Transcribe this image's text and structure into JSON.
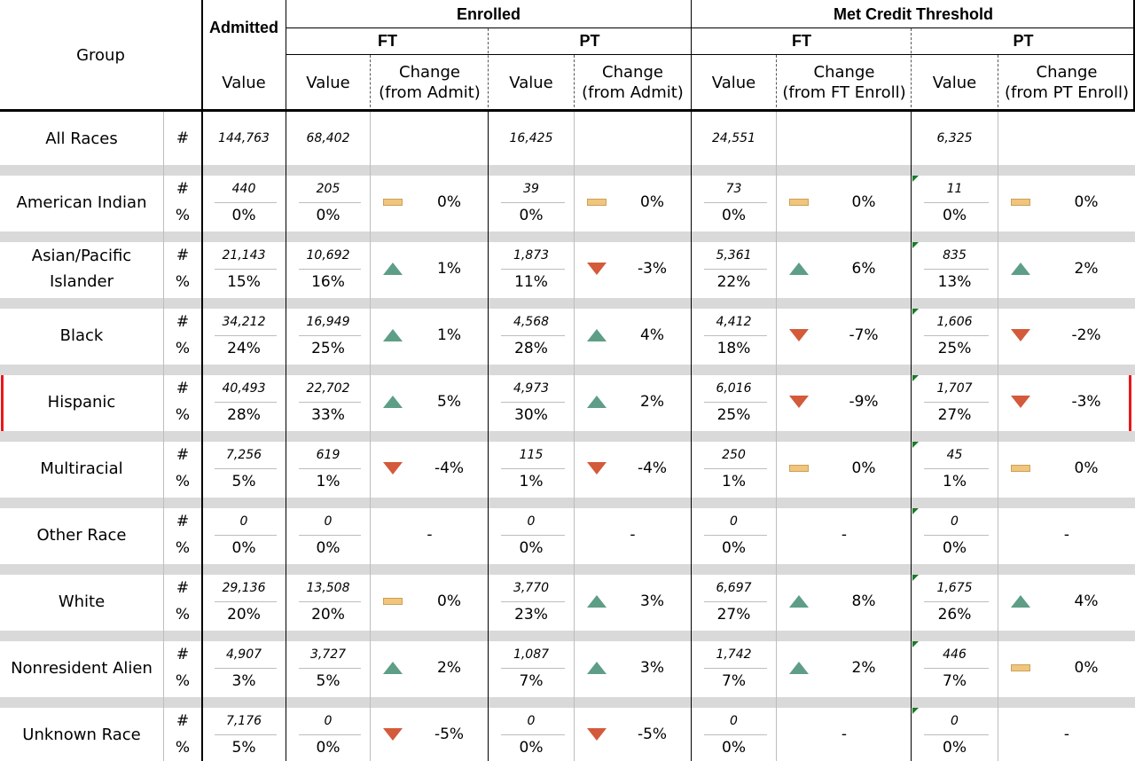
{
  "header": {
    "group": "Group",
    "admitted": "Admitted",
    "enrolled": "Enrolled",
    "met_credit_threshold": "Met Credit Threshold",
    "ft": "FT",
    "pt": "PT",
    "value": "Value",
    "change": "Change",
    "from_admit": "(from Admit)",
    "from_ft_enroll": "(from FT Enroll)",
    "from_pt_enroll": "(from PT Enroll)"
  },
  "symbols": {
    "count": "#",
    "percent": "%"
  },
  "colors": {
    "up": "#5e9e86",
    "down": "#d35a3a",
    "flat": "#f2c57c",
    "band": "#d9d9d9",
    "highlight": "#e8171b",
    "flag": "#1a7a2a"
  },
  "rows": [
    {
      "group": "All Races",
      "n": [
        "144,763",
        "68,402",
        "16,425",
        "24,551",
        "6,325"
      ]
    },
    {
      "group": "American Indian",
      "n": [
        "440",
        "205",
        "39",
        "73",
        "11"
      ],
      "p": [
        "0%",
        "0%",
        "0%",
        "0%",
        "0%"
      ],
      "c": [
        {
          "icon": "flat-bar-icon",
          "t": "0%"
        },
        {
          "icon": "flat-bar-icon",
          "t": "0%"
        },
        {
          "icon": "flat-bar-icon",
          "t": "0%"
        },
        {
          "icon": "flat-bar-icon",
          "t": "0%"
        }
      ]
    },
    {
      "group": "Asian/Pacific Islander",
      "n": [
        "21,143",
        "10,692",
        "1,873",
        "5,361",
        "835"
      ],
      "p": [
        "15%",
        "16%",
        "11%",
        "22%",
        "13%"
      ],
      "c": [
        {
          "icon": "up-triangle-icon",
          "t": "1%"
        },
        {
          "icon": "down-triangle-icon",
          "t": "-3%"
        },
        {
          "icon": "up-triangle-icon",
          "t": "6%"
        },
        {
          "icon": "up-triangle-icon",
          "t": "2%"
        }
      ]
    },
    {
      "group": "Black",
      "n": [
        "34,212",
        "16,949",
        "4,568",
        "4,412",
        "1,606"
      ],
      "p": [
        "24%",
        "25%",
        "28%",
        "18%",
        "25%"
      ],
      "c": [
        {
          "icon": "up-triangle-icon",
          "t": "1%"
        },
        {
          "icon": "up-triangle-icon",
          "t": "4%"
        },
        {
          "icon": "down-triangle-icon",
          "t": "-7%"
        },
        {
          "icon": "down-triangle-icon",
          "t": "-2%"
        }
      ]
    },
    {
      "group": "Hispanic",
      "n": [
        "40,493",
        "22,702",
        "4,973",
        "6,016",
        "1,707"
      ],
      "p": [
        "28%",
        "33%",
        "30%",
        "25%",
        "27%"
      ],
      "c": [
        {
          "icon": "up-triangle-icon",
          "t": "5%"
        },
        {
          "icon": "up-triangle-icon",
          "t": "2%"
        },
        {
          "icon": "down-triangle-icon",
          "t": "-9%"
        },
        {
          "icon": "down-triangle-icon",
          "t": "-3%"
        }
      ]
    },
    {
      "group": "Multiracial",
      "n": [
        "7,256",
        "619",
        "115",
        "250",
        "45"
      ],
      "p": [
        "5%",
        "1%",
        "1%",
        "1%",
        "1%"
      ],
      "c": [
        {
          "icon": "down-triangle-icon",
          "t": "-4%"
        },
        {
          "icon": "down-triangle-icon",
          "t": "-4%"
        },
        {
          "icon": "flat-bar-icon",
          "t": "0%"
        },
        {
          "icon": "flat-bar-icon",
          "t": "0%"
        }
      ]
    },
    {
      "group": "Other Race",
      "n": [
        "0",
        "0",
        "0",
        "0",
        "0"
      ],
      "p": [
        "0%",
        "0%",
        "0%",
        "0%",
        "0%"
      ],
      "c": [
        {
          "icon": "",
          "t": "-"
        },
        {
          "icon": "",
          "t": "-"
        },
        {
          "icon": "",
          "t": "-"
        },
        {
          "icon": "",
          "t": "-"
        }
      ]
    },
    {
      "group": "White",
      "n": [
        "29,136",
        "13,508",
        "3,770",
        "6,697",
        "1,675"
      ],
      "p": [
        "20%",
        "20%",
        "23%",
        "27%",
        "26%"
      ],
      "c": [
        {
          "icon": "flat-bar-icon",
          "t": "0%"
        },
        {
          "icon": "up-triangle-icon",
          "t": "3%"
        },
        {
          "icon": "up-triangle-icon",
          "t": "8%"
        },
        {
          "icon": "up-triangle-icon",
          "t": "4%"
        }
      ]
    },
    {
      "group": "Nonresident Alien",
      "n": [
        "4,907",
        "3,727",
        "1,087",
        "1,742",
        "446"
      ],
      "p": [
        "3%",
        "5%",
        "7%",
        "7%",
        "7%"
      ],
      "c": [
        {
          "icon": "up-triangle-icon",
          "t": "2%"
        },
        {
          "icon": "up-triangle-icon",
          "t": "3%"
        },
        {
          "icon": "up-triangle-icon",
          "t": "2%"
        },
        {
          "icon": "flat-bar-icon",
          "t": "0%"
        }
      ]
    },
    {
      "group": "Unknown Race",
      "n": [
        "7,176",
        "0",
        "0",
        "0",
        "0"
      ],
      "p": [
        "5%",
        "0%",
        "0%",
        "0%",
        "0%"
      ],
      "c": [
        {
          "icon": "down-triangle-icon",
          "t": "-5%"
        },
        {
          "icon": "down-triangle-icon",
          "t": "-5%"
        },
        {
          "icon": "",
          "t": "-"
        },
        {
          "icon": "",
          "t": "-"
        }
      ]
    }
  ]
}
